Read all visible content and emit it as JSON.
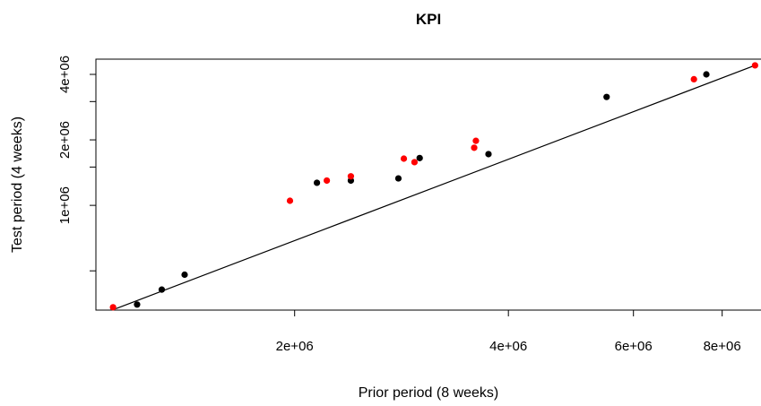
{
  "chart_data": {
    "type": "scatter",
    "title": "KPI",
    "xlabel": "Prior period (8 weeks)",
    "ylabel": "Test period (4 weeks)",
    "x_scale": "log",
    "y_scale": "log",
    "xlim": [
      1050000,
      9100000
    ],
    "ylim": [
      330000,
      4700000
    ],
    "grid": false,
    "legend": "none",
    "x_ticks": [
      {
        "value": 2000000,
        "label": "2e+06"
      },
      {
        "value": 4000000,
        "label": "4e+06"
      },
      {
        "value": 6000000,
        "label": "6e+06"
      },
      {
        "value": 8000000,
        "label": "8e+06"
      }
    ],
    "y_ticks": [
      {
        "value": 500000,
        "label": ""
      },
      {
        "value": 1000000,
        "label": "1e+06"
      },
      {
        "value": 1500000,
        "label": ""
      },
      {
        "value": 2000000,
        "label": "2e+06"
      },
      {
        "value": 3000000,
        "label": ""
      },
      {
        "value": 4000000,
        "label": "4e+06"
      }
    ],
    "series": [
      {
        "color": "#000000",
        "points": [
          {
            "x": 1200000,
            "y": 350000
          },
          {
            "x": 1300000,
            "y": 410000
          },
          {
            "x": 1400000,
            "y": 480000
          },
          {
            "x": 2150000,
            "y": 1270000
          },
          {
            "x": 2400000,
            "y": 1300000
          },
          {
            "x": 2800000,
            "y": 1330000
          },
          {
            "x": 3000000,
            "y": 1650000
          },
          {
            "x": 3750000,
            "y": 1720000
          },
          {
            "x": 5500000,
            "y": 3150000
          },
          {
            "x": 7600000,
            "y": 4000000
          }
        ]
      },
      {
        "color": "#ff0000",
        "points": [
          {
            "x": 1110000,
            "y": 340000
          },
          {
            "x": 1970000,
            "y": 1050000
          },
          {
            "x": 2220000,
            "y": 1300000
          },
          {
            "x": 2400000,
            "y": 1360000
          },
          {
            "x": 2850000,
            "y": 1640000
          },
          {
            "x": 2950000,
            "y": 1580000
          },
          {
            "x": 3580000,
            "y": 1840000
          },
          {
            "x": 3600000,
            "y": 1980000
          },
          {
            "x": 7300000,
            "y": 3800000
          },
          {
            "x": 8900000,
            "y": 4400000
          }
        ]
      }
    ],
    "fit_line": {
      "color": "#000000",
      "points": [
        {
          "x": 1120000,
          "y": 335000
        },
        {
          "x": 8950000,
          "y": 4430000
        }
      ]
    }
  }
}
